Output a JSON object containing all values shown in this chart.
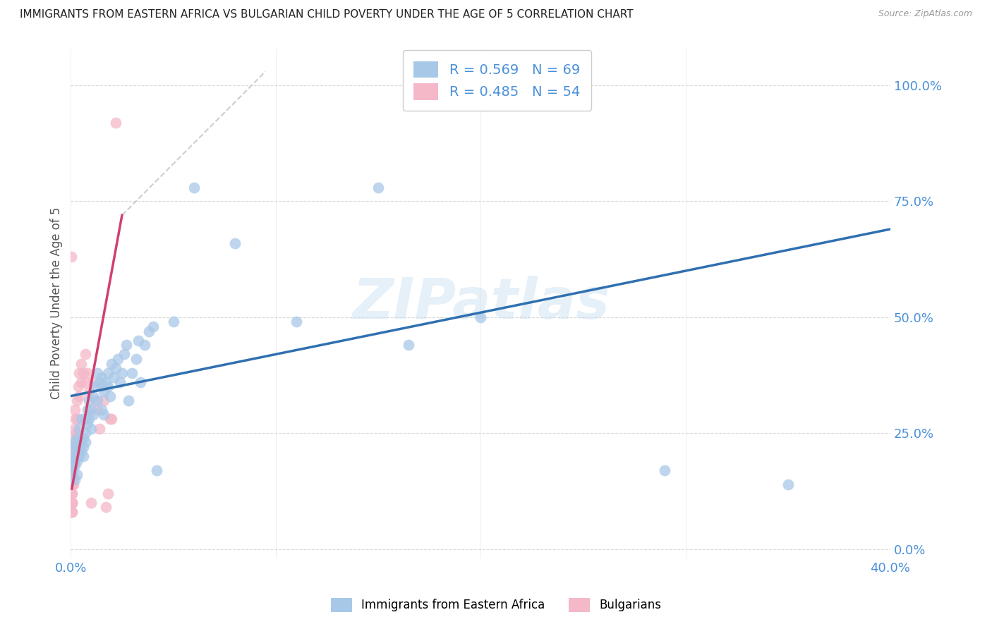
{
  "title": "IMMIGRANTS FROM EASTERN AFRICA VS BULGARIAN CHILD POVERTY UNDER THE AGE OF 5 CORRELATION CHART",
  "source": "Source: ZipAtlas.com",
  "ylabel": "Child Poverty Under the Age of 5",
  "xlim": [
    0.0,
    0.4
  ],
  "ylim": [
    -0.02,
    1.08
  ],
  "yticks": [
    0.0,
    0.25,
    0.5,
    0.75,
    1.0
  ],
  "ytick_labels": [
    "0.0%",
    "25.0%",
    "50.0%",
    "75.0%",
    "100.0%"
  ],
  "xtick_pos": [
    0.0,
    0.1,
    0.2,
    0.3,
    0.4
  ],
  "xtick_labels": [
    "0.0%",
    "",
    "",
    "",
    "40.0%"
  ],
  "blue_R": 0.569,
  "blue_N": 69,
  "pink_R": 0.485,
  "pink_N": 54,
  "blue_color": "#a8c8e8",
  "pink_color": "#f4b8c8",
  "blue_line_color": "#3070b0",
  "pink_line_color": "#d04070",
  "grey_line_color": "#c8c8c8",
  "legend_label_blue": "Immigrants from Eastern Africa",
  "legend_label_pink": "Bulgarians",
  "watermark": "ZIPatlas",
  "blue_x": [
    0.001,
    0.001,
    0.001,
    0.002,
    0.002,
    0.002,
    0.002,
    0.003,
    0.003,
    0.003,
    0.003,
    0.004,
    0.004,
    0.004,
    0.005,
    0.005,
    0.005,
    0.006,
    0.006,
    0.006,
    0.007,
    0.007,
    0.007,
    0.008,
    0.008,
    0.009,
    0.009,
    0.01,
    0.01,
    0.011,
    0.011,
    0.012,
    0.013,
    0.013,
    0.014,
    0.015,
    0.015,
    0.016,
    0.016,
    0.017,
    0.018,
    0.018,
    0.019,
    0.02,
    0.021,
    0.022,
    0.023,
    0.024,
    0.025,
    0.026,
    0.027,
    0.028,
    0.03,
    0.032,
    0.033,
    0.034,
    0.036,
    0.038,
    0.04,
    0.042,
    0.05,
    0.06,
    0.08,
    0.11,
    0.15,
    0.165,
    0.2,
    0.29,
    0.35
  ],
  "blue_y": [
    0.22,
    0.19,
    0.17,
    0.2,
    0.23,
    0.18,
    0.15,
    0.21,
    0.24,
    0.19,
    0.16,
    0.22,
    0.2,
    0.26,
    0.23,
    0.21,
    0.28,
    0.24,
    0.22,
    0.2,
    0.28,
    0.25,
    0.23,
    0.3,
    0.27,
    0.28,
    0.32,
    0.3,
    0.26,
    0.33,
    0.29,
    0.35,
    0.32,
    0.38,
    0.36,
    0.3,
    0.37,
    0.34,
    0.29,
    0.36,
    0.35,
    0.38,
    0.33,
    0.4,
    0.37,
    0.39,
    0.41,
    0.36,
    0.38,
    0.42,
    0.44,
    0.32,
    0.38,
    0.41,
    0.45,
    0.36,
    0.44,
    0.47,
    0.48,
    0.17,
    0.49,
    0.78,
    0.66,
    0.49,
    0.78,
    0.44,
    0.5,
    0.17,
    0.14
  ],
  "pink_x": [
    0.0001,
    0.0002,
    0.0002,
    0.0003,
    0.0003,
    0.0004,
    0.0004,
    0.0005,
    0.0005,
    0.0006,
    0.0006,
    0.0007,
    0.0007,
    0.0008,
    0.0009,
    0.001,
    0.001,
    0.0011,
    0.0012,
    0.0013,
    0.0014,
    0.0015,
    0.0015,
    0.0016,
    0.0017,
    0.0018,
    0.002,
    0.002,
    0.0022,
    0.0025,
    0.003,
    0.003,
    0.0035,
    0.004,
    0.004,
    0.005,
    0.005,
    0.006,
    0.007,
    0.007,
    0.008,
    0.009,
    0.01,
    0.011,
    0.012,
    0.013,
    0.014,
    0.015,
    0.016,
    0.017,
    0.018,
    0.019,
    0.02,
    0.022
  ],
  "pink_y": [
    0.63,
    0.2,
    0.16,
    0.15,
    0.1,
    0.1,
    0.08,
    0.12,
    0.14,
    0.1,
    0.08,
    0.12,
    0.1,
    0.15,
    0.14,
    0.18,
    0.16,
    0.14,
    0.2,
    0.22,
    0.18,
    0.22,
    0.19,
    0.24,
    0.21,
    0.3,
    0.26,
    0.22,
    0.28,
    0.25,
    0.32,
    0.28,
    0.35,
    0.33,
    0.38,
    0.36,
    0.4,
    0.38,
    0.42,
    0.36,
    0.38,
    0.34,
    0.1,
    0.36,
    0.32,
    0.3,
    0.26,
    0.35,
    0.32,
    0.09,
    0.12,
    0.28,
    0.28,
    0.92
  ],
  "background_color": "#ffffff",
  "grid_color": "#d8d8d8",
  "title_color": "#222222",
  "tick_label_color": "#4a90d9"
}
